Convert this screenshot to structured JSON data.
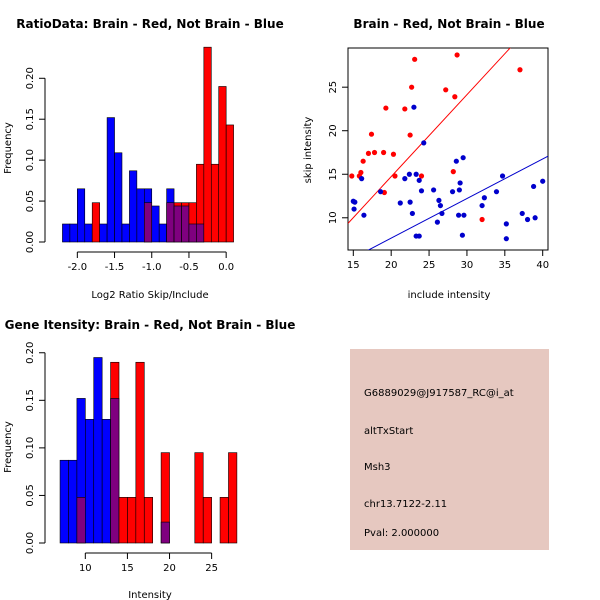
{
  "chart_data": [
    {
      "id": "ratio",
      "type": "histogram",
      "title": "RatioData: Brain - Red, Not Brain - Blue",
      "xlabel": "Log2 Ratio Skip/Include",
      "ylabel": "Frequency",
      "xlim": [
        -2.3,
        0.28
      ],
      "ylim": [
        0,
        0.237
      ],
      "xticks": [
        -2.0,
        -1.5,
        -1.0,
        -0.5,
        0.0
      ],
      "xtick_labels": [
        "-2.0",
        "-1.5",
        "-1.0",
        "-0.5",
        "0.0"
      ],
      "yticks": [
        0.0,
        0.05,
        0.1,
        0.15,
        0.2
      ],
      "ytick_labels": [
        "0.00",
        "0.05",
        "0.10",
        "0.15",
        "0.20"
      ],
      "bin_edges": [
        -2.2,
        -2.1,
        -2.0,
        -1.9,
        -1.8,
        -1.7,
        -1.6,
        -1.5,
        -1.4,
        -1.3,
        -1.2,
        -1.1,
        -1.0,
        -0.9,
        -0.8,
        -0.7,
        -0.6,
        -0.5,
        -0.4,
        -0.3,
        -0.2,
        -0.1,
        0.0,
        0.1,
        0.2
      ],
      "series": [
        {
          "name": "Not Brain",
          "color": "#0000ff",
          "values": [
            0.022,
            0.022,
            0.065,
            0.022,
            0.0,
            0.022,
            0.152,
            0.109,
            0.022,
            0.087,
            0.065,
            0.065,
            0.044,
            0.022,
            0.065,
            0.044,
            0.044,
            0.022,
            0.022,
            0.0,
            0.0,
            0.0,
            0.0,
            0.0
          ]
        },
        {
          "name": "Brain",
          "color": "#ff0000",
          "values": [
            0.0,
            0.0,
            0.0,
            0.0,
            0.048,
            0.0,
            0.0,
            0.0,
            0.0,
            0.0,
            0.0,
            0.048,
            0.0,
            0.0,
            0.048,
            0.048,
            0.048,
            0.048,
            0.095,
            0.238,
            0.095,
            0.19,
            0.143,
            0.0
          ]
        }
      ],
      "overlap_color": "#7f007f"
    },
    {
      "id": "scatter",
      "type": "scatter",
      "title": "Brain - Red, Not Brain - Blue",
      "xlabel": "include intensity",
      "ylabel": "skip intensity",
      "xlim": [
        14.3,
        40.7
      ],
      "ylim": [
        6.3,
        29.5
      ],
      "xticks": [
        15,
        20,
        25,
        30,
        35,
        40
      ],
      "xtick_labels": [
        "15",
        "20",
        "25",
        "30",
        "35",
        "40"
      ],
      "yticks": [
        10,
        15,
        20,
        25
      ],
      "ytick_labels": [
        "10",
        "15",
        "20",
        "25"
      ],
      "series": [
        {
          "name": "Brain",
          "color": "#ff0000",
          "points": [
            [
              14.8,
              14.8
            ],
            [
              15.8,
              14.8
            ],
            [
              16.0,
              15.2
            ],
            [
              16.3,
              16.5
            ],
            [
              17.0,
              17.4
            ],
            [
              17.4,
              19.6
            ],
            [
              17.8,
              17.5
            ],
            [
              19.0,
              17.5
            ],
            [
              19.1,
              12.9
            ],
            [
              19.3,
              22.6
            ],
            [
              20.3,
              17.3
            ],
            [
              20.5,
              14.8
            ],
            [
              21.8,
              22.5
            ],
            [
              22.5,
              19.5
            ],
            [
              22.7,
              25.0
            ],
            [
              23.1,
              28.2
            ],
            [
              24.0,
              14.8
            ],
            [
              27.2,
              24.7
            ],
            [
              28.2,
              15.3
            ],
            [
              28.4,
              23.9
            ],
            [
              28.7,
              28.7
            ],
            [
              32.0,
              9.8
            ],
            [
              37.0,
              27.0
            ]
          ],
          "fit": [
            [
              14.3,
              9.36
            ],
            [
              40.7,
              34.21
            ]
          ]
        },
        {
          "name": "Not Brain",
          "color": "#0000cc",
          "points": [
            [
              15.0,
              11.9
            ],
            [
              15.1,
              11.0
            ],
            [
              15.2,
              11.8
            ],
            [
              16.1,
              14.5
            ],
            [
              16.4,
              10.3
            ],
            [
              18.6,
              13.0
            ],
            [
              21.2,
              11.7
            ],
            [
              21.8,
              14.5
            ],
            [
              22.4,
              15.0
            ],
            [
              22.5,
              11.8
            ],
            [
              22.8,
              10.5
            ],
            [
              23.0,
              22.7
            ],
            [
              23.3,
              7.9
            ],
            [
              23.3,
              15.0
            ],
            [
              23.7,
              14.3
            ],
            [
              23.7,
              7.9
            ],
            [
              24.0,
              13.1
            ],
            [
              24.3,
              18.6
            ],
            [
              25.6,
              13.2
            ],
            [
              26.1,
              9.5
            ],
            [
              26.3,
              12.0
            ],
            [
              26.5,
              11.4
            ],
            [
              26.7,
              10.5
            ],
            [
              28.1,
              13.0
            ],
            [
              28.6,
              16.5
            ],
            [
              28.9,
              10.3
            ],
            [
              29.0,
              13.2
            ],
            [
              29.1,
              14.0
            ],
            [
              29.4,
              8.0
            ],
            [
              29.5,
              16.9
            ],
            [
              29.6,
              10.3
            ],
            [
              32.0,
              11.4
            ],
            [
              32.3,
              12.3
            ],
            [
              33.9,
              13.0
            ],
            [
              34.7,
              14.8
            ],
            [
              35.2,
              9.3
            ],
            [
              35.2,
              7.6
            ],
            [
              37.3,
              10.5
            ],
            [
              38.0,
              9.8
            ],
            [
              38.8,
              13.6
            ],
            [
              39.0,
              10.0
            ],
            [
              40.0,
              14.2
            ]
          ],
          "fit": [
            [
              14.3,
              5.07
            ],
            [
              40.7,
              17.08
            ]
          ]
        }
      ]
    },
    {
      "id": "intensity",
      "type": "histogram",
      "title": "Gene Itensity: Brain - Red, Not Brain - Blue",
      "xlabel": "Intensity",
      "ylabel": "Frequency",
      "xlim": [
        6.4,
        29.2
      ],
      "ylim": [
        0,
        0.205
      ],
      "xticks": [
        10,
        15,
        20,
        25
      ],
      "xtick_labels": [
        "10",
        "15",
        "20",
        "25"
      ],
      "yticks": [
        0.0,
        0.05,
        0.1,
        0.15,
        0.2
      ],
      "ytick_labels": [
        "0.00",
        "0.05",
        "0.10",
        "0.15",
        "0.20"
      ],
      "bin_edges": [
        7,
        8,
        9,
        10,
        11,
        12,
        13,
        14,
        15,
        16,
        17,
        18,
        19,
        20,
        21,
        22,
        23,
        24,
        25,
        26,
        27,
        28,
        29
      ],
      "series": [
        {
          "name": "Not Brain",
          "color": "#0000ff",
          "values": [
            0.087,
            0.087,
            0.152,
            0.13,
            0.195,
            0.13,
            0.152,
            0.0,
            0.0,
            0.0,
            0.0,
            0.0,
            0.022,
            0.0,
            0.0,
            0.0,
            0.0,
            0.0,
            0.0,
            0.0,
            0.0,
            0.0
          ]
        },
        {
          "name": "Brain",
          "color": "#ff0000",
          "values": [
            0.0,
            0.0,
            0.048,
            0.0,
            0.0,
            0.0,
            0.19,
            0.048,
            0.048,
            0.19,
            0.048,
            0.0,
            0.095,
            0.0,
            0.0,
            0.0,
            0.095,
            0.048,
            0.0,
            0.048,
            0.095,
            0.0
          ]
        }
      ],
      "overlap_color": "#7f007f"
    }
  ],
  "info_panel": {
    "background": "#e6c8c0",
    "probe_id": "G6889029@J917587_RC@i_at",
    "event_type": "altTxStart",
    "gene": "Msh3",
    "location": "chr13.7122-2.11",
    "pval": "Pval: 2.000000",
    "pval_color": "#b00000"
  }
}
